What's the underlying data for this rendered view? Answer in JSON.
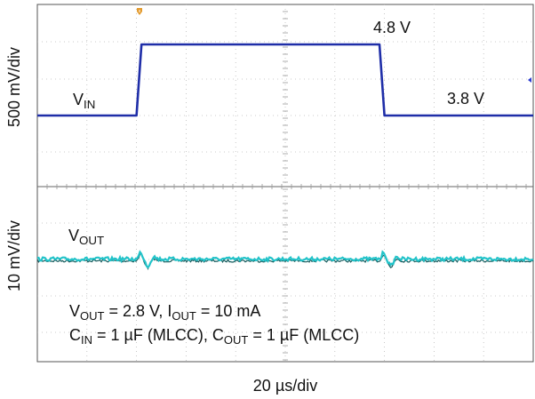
{
  "chart_data": {
    "type": "line",
    "title": "",
    "x_axis": {
      "label": "20 µs/div",
      "divisions": 10,
      "us_per_div": 20,
      "range_us": [
        0,
        200
      ]
    },
    "grid": true,
    "channels": [
      {
        "name": "VIN",
        "label_main": "V",
        "label_sub": "IN",
        "y_axis_label": "500 mV/div",
        "color": "#1f2ea8",
        "points_us_V": [
          [
            0,
            3.8
          ],
          [
            40,
            3.8
          ],
          [
            42,
            4.8
          ],
          [
            138,
            4.8
          ],
          [
            140,
            3.8
          ],
          [
            200,
            3.8
          ]
        ],
        "annotations": [
          {
            "text": "4.8 V",
            "x_us": 124,
            "value_V": 4.8
          },
          {
            "text": "3.8 V",
            "x_us": 144,
            "value_V": 3.8
          }
        ]
      },
      {
        "name": "VOUT",
        "label_main": "V",
        "label_sub": "OUT",
        "y_axis_label": "10 mV/div",
        "color": "#22c3c9",
        "nominal_V": 2.8,
        "transients_us": [
          41,
          139
        ]
      }
    ],
    "conditions": [
      {
        "parts": [
          {
            "t": "V"
          },
          {
            "t": "OUT",
            "sub": true
          },
          {
            "t": " = 2.8 V, I"
          },
          {
            "t": "OUT",
            "sub": true
          },
          {
            "t": " = 10 mA"
          }
        ]
      },
      {
        "parts": [
          {
            "t": "C"
          },
          {
            "t": "IN",
            "sub": true
          },
          {
            "t": " = 1 µF (MLCC), C"
          },
          {
            "t": "OUT",
            "sub": true
          },
          {
            "t": " = 1 µF (MLCC)"
          }
        ]
      }
    ]
  }
}
